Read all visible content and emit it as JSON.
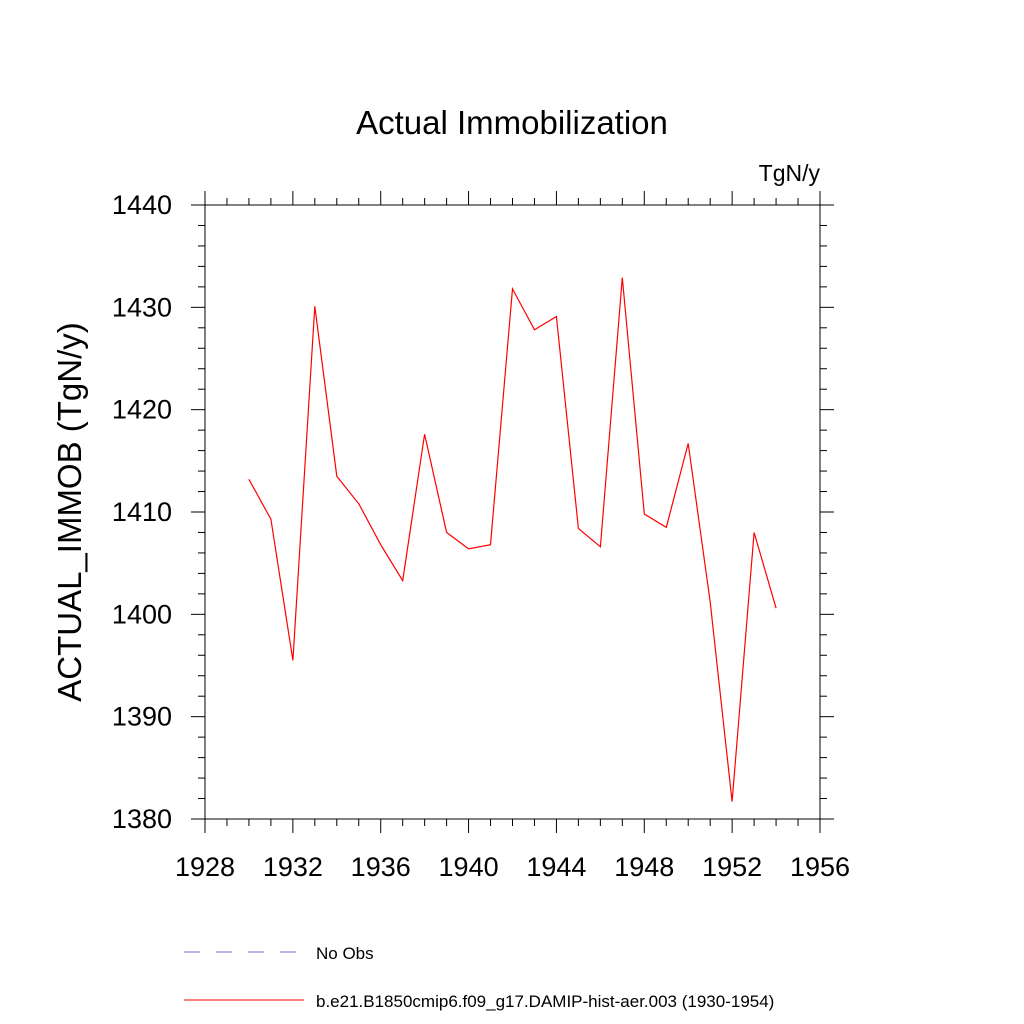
{
  "chart_data": {
    "type": "line",
    "title": "Actual Immobilization",
    "units_label": "TgN/y",
    "ylabel": "ACTUAL_IMMOB  (TgN/y)",
    "xlabel": "",
    "xlim": [
      1928,
      1956
    ],
    "ylim": [
      1380,
      1440
    ],
    "x_ticks": [
      1928,
      1932,
      1936,
      1940,
      1944,
      1948,
      1952,
      1956
    ],
    "y_ticks": [
      1380,
      1390,
      1400,
      1410,
      1420,
      1430,
      1440
    ],
    "grid": false,
    "series": [
      {
        "name": "b.e21.B1850cmip6.f09_g17.DAMIP-hist-aer.003 (1930-1954)",
        "color": "#ff0000",
        "style": "solid",
        "x": [
          1930,
          1931,
          1932,
          1933,
          1934,
          1935,
          1936,
          1937,
          1938,
          1939,
          1940,
          1941,
          1942,
          1943,
          1944,
          1945,
          1946,
          1947,
          1948,
          1949,
          1950,
          1951,
          1952,
          1953,
          1954
        ],
        "values": [
          1413.2,
          1409.3,
          1395.5,
          1430.1,
          1413.5,
          1410.8,
          1406.8,
          1403.3,
          1417.6,
          1408.0,
          1406.4,
          1406.8,
          1431.8,
          1427.8,
          1429.1,
          1408.4,
          1406.6,
          1432.9,
          1409.8,
          1408.5,
          1416.7,
          1401.2,
          1381.7,
          1408.0,
          1400.6
        ]
      }
    ],
    "legend": {
      "placement": "bottom",
      "entries": [
        {
          "label": "No Obs",
          "color": "#7070c8",
          "style": "dashed"
        },
        {
          "label": "b.e21.B1850cmip6.f09_g17.DAMIP-hist-aer.003 (1930-1954)",
          "color": "#ff0000",
          "style": "solid"
        }
      ]
    }
  }
}
